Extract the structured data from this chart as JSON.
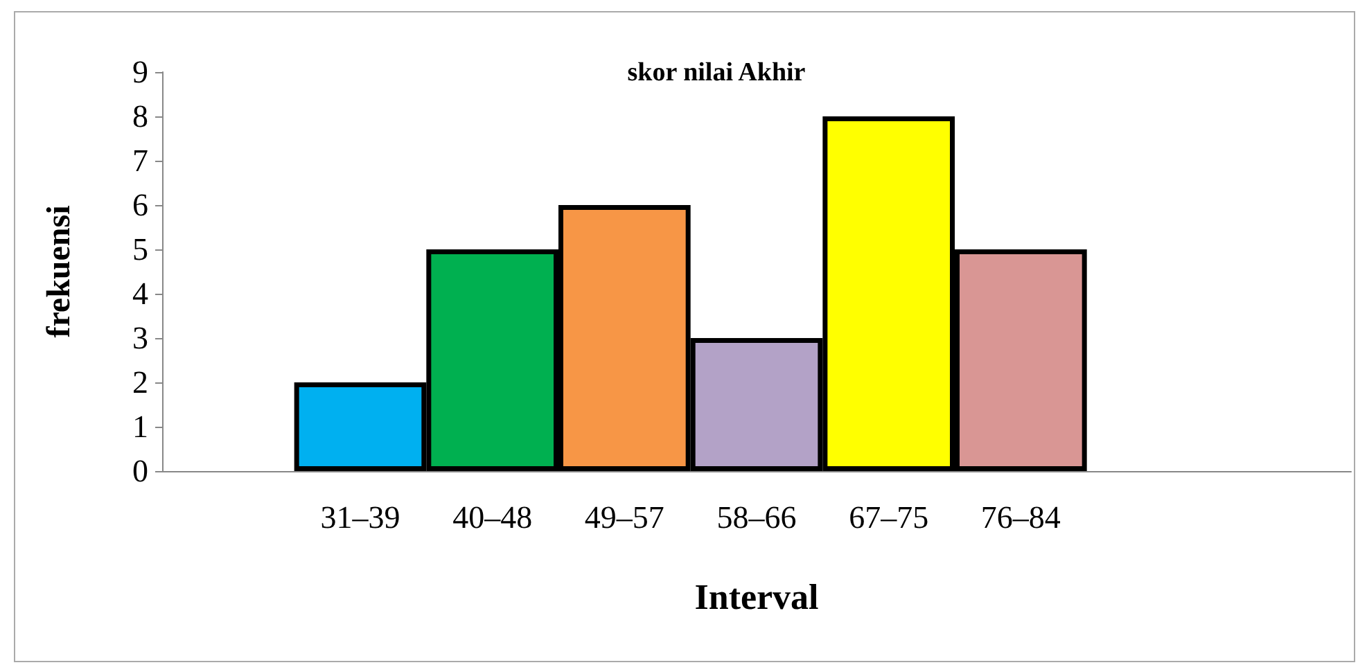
{
  "chart_data": {
    "type": "bar",
    "title": "skor nilai Akhir",
    "xlabel": "Interval",
    "ylabel": "frekuensi",
    "categories": [
      null,
      "31–39",
      "40–48",
      "49–57",
      "58–66",
      "67–75",
      "76–84",
      null,
      null
    ],
    "values": [
      null,
      2,
      5,
      6,
      3,
      8,
      5,
      null,
      null
    ],
    "colors": [
      null,
      "#00b0f0",
      "#00b050",
      "#f79646",
      "#b3a2c7",
      "#ffff00",
      "#d99694",
      null,
      null
    ],
    "ylim": [
      0,
      9
    ],
    "yticks": [
      0,
      1,
      2,
      3,
      4,
      5,
      6,
      7,
      8,
      9
    ]
  }
}
